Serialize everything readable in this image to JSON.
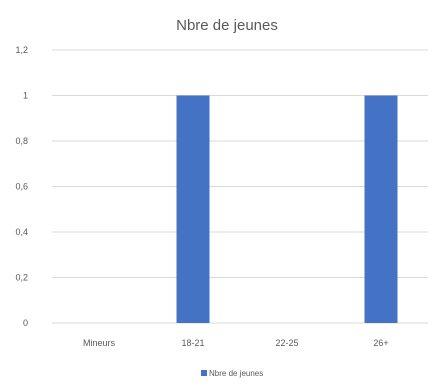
{
  "chart_data": {
    "type": "bar",
    "title": "Nbre de jeunes",
    "categories": [
      "Mineurs",
      "18-21",
      "22-25",
      "26+"
    ],
    "series": [
      {
        "name": "Nbre de jeunes",
        "values": [
          0,
          1,
          0,
          1
        ],
        "color": "#4472C4"
      }
    ],
    "ylim": [
      0,
      1.2
    ],
    "yticks": [
      "0",
      "0,2",
      "0,4",
      "0,6",
      "0,8",
      "1",
      "1,2"
    ],
    "grid": true,
    "legend": "bottom"
  }
}
